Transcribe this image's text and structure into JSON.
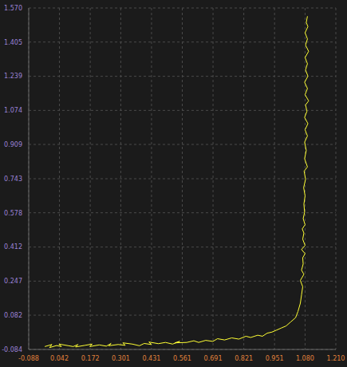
{
  "chart_data": {
    "type": "line",
    "color": "#ffff33",
    "marker": "none",
    "line_style": "solid",
    "grid": true,
    "xlim": [
      -0.088,
      1.21
    ],
    "xticks": [
      -0.088,
      0.042,
      0.172,
      0.301,
      0.431,
      0.561,
      0.691,
      0.821,
      0.951,
      {
        "value": 1.08,
        "label": "1.080"
      },
      {
        "value": 1.21,
        "label": "1.210"
      }
    ],
    "ylim": [
      -0.084,
      1.57
    ],
    "yticks": [
      -0.084,
      0.082,
      0.247,
      0.412,
      0.578,
      0.743,
      0.909,
      1.074,
      1.239,
      1.405,
      {
        "value": 1.57,
        "label": "1.570"
      }
    ],
    "x": [
      -0.02,
      0.01,
      0.0,
      0.03,
      0.05,
      0.04,
      0.08,
      0.1,
      0.12,
      0.11,
      0.15,
      0.18,
      0.17,
      0.21,
      0.24,
      0.26,
      0.25,
      0.29,
      0.32,
      0.31,
      0.35,
      0.38,
      0.4,
      0.43,
      0.42,
      0.46,
      0.49,
      0.52,
      0.55,
      0.53,
      0.58,
      0.61,
      0.63,
      0.66,
      0.69,
      0.71,
      0.74,
      0.77,
      0.8,
      0.83,
      0.85,
      0.88,
      0.9,
      0.92,
      0.94,
      0.96,
      0.98,
      1.0,
      1.02,
      1.04,
      1.05,
      1.06,
      1.065,
      1.07,
      1.06,
      1.075,
      1.065,
      1.072,
      1.07,
      1.08,
      1.065,
      1.08,
      1.07,
      1.075,
      1.068,
      1.08,
      1.072,
      1.078,
      1.075,
      1.08,
      1.074,
      1.082,
      1.076,
      1.09,
      1.078,
      1.085,
      1.078,
      1.09,
      1.08,
      1.092,
      1.078,
      1.088,
      1.082,
      1.095,
      1.08,
      1.09,
      1.078,
      1.092,
      1.082,
      1.09,
      1.08,
      1.095,
      1.082,
      1.09,
      1.08,
      1.092,
      1.085,
      1.09
    ],
    "values": [
      -0.07,
      -0.06,
      -0.075,
      -0.065,
      -0.07,
      -0.058,
      -0.066,
      -0.07,
      -0.06,
      -0.072,
      -0.064,
      -0.058,
      -0.07,
      -0.062,
      -0.068,
      -0.055,
      -0.066,
      -0.06,
      -0.064,
      -0.052,
      -0.058,
      -0.066,
      -0.055,
      -0.06,
      -0.048,
      -0.056,
      -0.05,
      -0.058,
      -0.045,
      -0.052,
      -0.05,
      -0.042,
      -0.05,
      -0.04,
      -0.045,
      -0.032,
      -0.038,
      -0.028,
      -0.034,
      -0.02,
      -0.026,
      -0.015,
      -0.02,
      -0.005,
      0.0,
      0.01,
      0.02,
      0.03,
      0.05,
      0.07,
      0.1,
      0.14,
      0.18,
      0.22,
      0.25,
      0.28,
      0.3,
      0.33,
      0.36,
      0.38,
      0.4,
      0.42,
      0.45,
      0.48,
      0.5,
      0.52,
      0.55,
      0.58,
      0.62,
      0.66,
      0.7,
      0.74,
      0.78,
      0.8,
      0.84,
      0.88,
      0.92,
      0.95,
      0.98,
      1.01,
      1.04,
      1.07,
      1.1,
      1.12,
      1.15,
      1.18,
      1.21,
      1.24,
      1.27,
      1.3,
      1.33,
      1.36,
      1.39,
      1.42,
      1.45,
      1.48,
      1.5,
      1.53
    ]
  }
}
